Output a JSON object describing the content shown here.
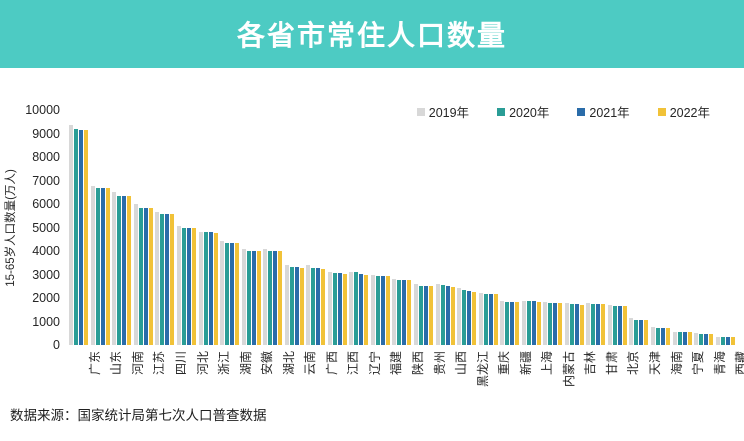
{
  "header": {
    "title": "各省市常住人口数量"
  },
  "source_note": "数据来源：国家统计局第七次人口普查数据",
  "colors": {
    "banner": "#4DCBC3",
    "text": "#262626",
    "series_2019": "#D8D8D8",
    "series_2020": "#2A9D96",
    "series_2021": "#2A6CA9",
    "series_2022": "#F1C238"
  },
  "chart_data": {
    "type": "bar",
    "title": "各省市常住人口数量",
    "xlabel": "",
    "ylabel": "15-65岁人口数量(万人)",
    "ylim": [
      0,
      10000
    ],
    "ytick_step": 1000,
    "grid": false,
    "legend_position": "top-right",
    "categories": [
      "广东",
      "山东",
      "河南",
      "江苏",
      "四川",
      "河北",
      "浙江",
      "湖南",
      "安徽",
      "湖北",
      "云南",
      "广西",
      "江西",
      "辽宁",
      "福建",
      "陕西",
      "贵州",
      "山西",
      "黑龙江",
      "重庆",
      "新疆",
      "上海",
      "内蒙古",
      "吉林",
      "甘肃",
      "北京",
      "天津",
      "海南",
      "宁夏",
      "青海",
      "西藏"
    ],
    "series": [
      {
        "name": "2019年",
        "color": "#D8D8D8",
        "values": [
          9350,
          6760,
          6500,
          5980,
          5640,
          5050,
          4820,
          4420,
          4070,
          4090,
          3400,
          3400,
          3120,
          3120,
          2960,
          2790,
          2600,
          2580,
          2440,
          2200,
          1870,
          1880,
          1830,
          1780,
          1790,
          1720,
          1150,
          780,
          570,
          500,
          330
        ]
      },
      {
        "name": "2020年",
        "color": "#2A9D96",
        "values": [
          9180,
          6700,
          6340,
          5850,
          5580,
          4980,
          4790,
          4360,
          4000,
          4000,
          3310,
          3260,
          3050,
          3090,
          2940,
          2770,
          2530,
          2550,
          2340,
          2160,
          1850,
          1860,
          1790,
          1740,
          1760,
          1660,
          1060,
          740,
          550,
          480,
          320
        ]
      },
      {
        "name": "2021年",
        "color": "#2A6CA9",
        "values": [
          9170,
          6700,
          6330,
          5850,
          5570,
          4970,
          4800,
          4360,
          4000,
          4000,
          3300,
          3260,
          3050,
          3010,
          2950,
          2770,
          2520,
          2510,
          2310,
          2160,
          1850,
          1860,
          1780,
          1730,
          1750,
          1660,
          1060,
          740,
          550,
          480,
          320
        ]
      },
      {
        "name": "2022年",
        "color": "#F1C238",
        "values": [
          9150,
          6690,
          6340,
          5840,
          5570,
          4960,
          4780,
          4350,
          4010,
          3990,
          3290,
          3250,
          3030,
          2980,
          2940,
          2760,
          2530,
          2480,
          2270,
          2160,
          1840,
          1850,
          1780,
          1720,
          1740,
          1650,
          1050,
          740,
          550,
          480,
          320
        ]
      }
    ]
  }
}
